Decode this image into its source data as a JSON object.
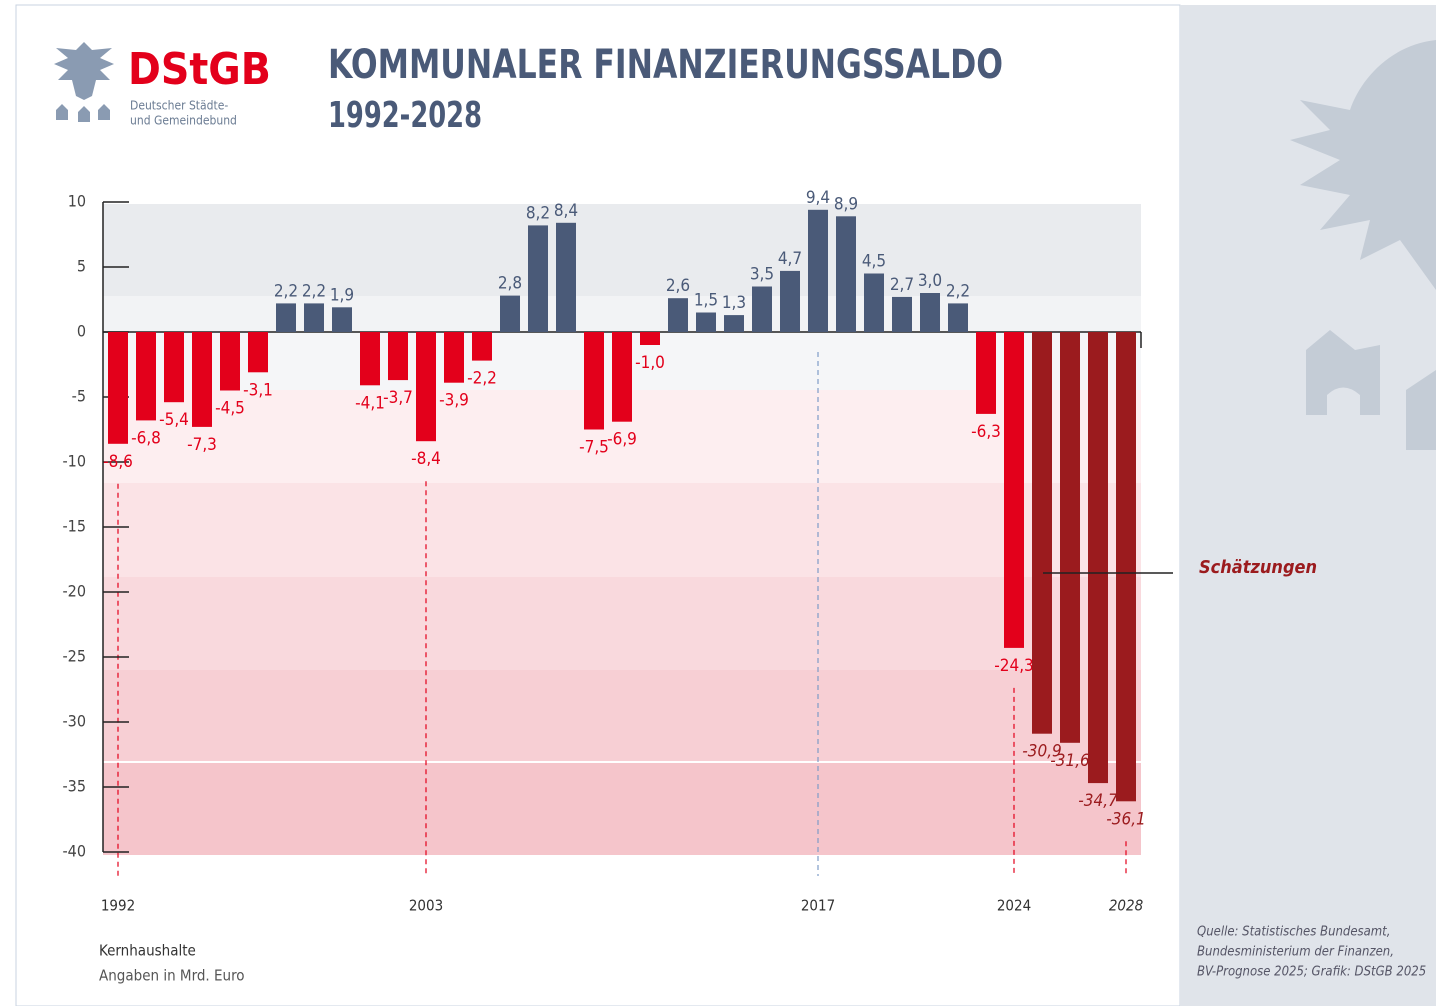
{
  "logo": {
    "name": "DStGB",
    "line1": "Deutscher Städte-",
    "line2": "und Gemeindebund"
  },
  "chart_data": {
    "type": "bar",
    "title": "KOMMUNALER FINANZIERUNGSSALDO",
    "subtitle": "1992-2028",
    "categories": [
      "1992",
      null,
      null,
      null,
      null,
      null,
      null,
      null,
      null,
      null,
      null,
      "2003",
      null,
      null,
      null,
      null,
      null,
      null,
      null,
      null,
      null,
      null,
      null,
      null,
      null,
      "2017",
      null,
      null,
      null,
      null,
      null,
      null,
      "2024",
      null,
      null,
      null,
      "2028"
    ],
    "values": [
      -8.6,
      -6.8,
      -5.4,
      -7.3,
      -4.5,
      -3.1,
      2.2,
      2.2,
      1.9,
      -4.1,
      -3.7,
      -8.4,
      -3.9,
      -2.2,
      2.8,
      8.2,
      8.4,
      -7.5,
      -6.9,
      -1.0,
      2.6,
      1.5,
      1.3,
      3.5,
      4.7,
      9.4,
      8.9,
      4.5,
      2.7,
      3.0,
      2.2,
      -6.3,
      -24.3,
      -30.9,
      -31.6,
      -34.7,
      -36.1
    ],
    "value_labels": [
      "-8,6",
      "-6,8",
      "-5,4",
      "-7,3",
      "-4,5",
      "-3,1",
      "2,2",
      "2,2",
      "1,9",
      "-4,1",
      "-3,7",
      "-8,4",
      "-3,9",
      "-2,2",
      "2,8",
      "8,2",
      "8,4",
      "-7,5",
      "-6,9",
      "-1,0",
      "2,6",
      "1,5",
      "1,3",
      "3,5",
      "4,7",
      "9,4",
      "8,9",
      "4,5",
      "2,7",
      "3,0",
      "2,2",
      "-6,3",
      "-24,3",
      "-30,9",
      "-31,6",
      "-34,7",
      "-36,1"
    ],
    "colors": [
      "#e3001b",
      "#e3001b",
      "#e3001b",
      "#e3001b",
      "#e3001b",
      "#e3001b",
      "#4a5a78",
      "#4a5a78",
      "#4a5a78",
      "#e3001b",
      "#e3001b",
      "#e3001b",
      "#e3001b",
      "#e3001b",
      "#4a5a78",
      "#4a5a78",
      "#4a5a78",
      "#e3001b",
      "#e3001b",
      "#e3001b",
      "#4a5a78",
      "#4a5a78",
      "#4a5a78",
      "#4a5a78",
      "#4a5a78",
      "#4a5a78",
      "#4a5a78",
      "#4a5a78",
      "#4a5a78",
      "#4a5a78",
      "#4a5a78",
      "#e3001b",
      "#e3001b",
      "#9b1b1e",
      "#9b1b1e",
      "#9b1b1e",
      "#9b1b1e"
    ],
    "ylim": [
      -40,
      10
    ],
    "yticks": [
      10,
      5,
      0,
      -5,
      -10,
      -15,
      -20,
      -25,
      -30,
      -35,
      -40
    ],
    "annotation": "Schätzungen",
    "notes": [
      "Kernhaushalte",
      "Angaben in Mrd. Euro"
    ]
  },
  "source": [
    "Quelle: Statistisches Bundesamt,",
    "Bundesministerium der Finanzen,",
    "BV-Prognose 2025; Grafik: DStGB 2025"
  ]
}
